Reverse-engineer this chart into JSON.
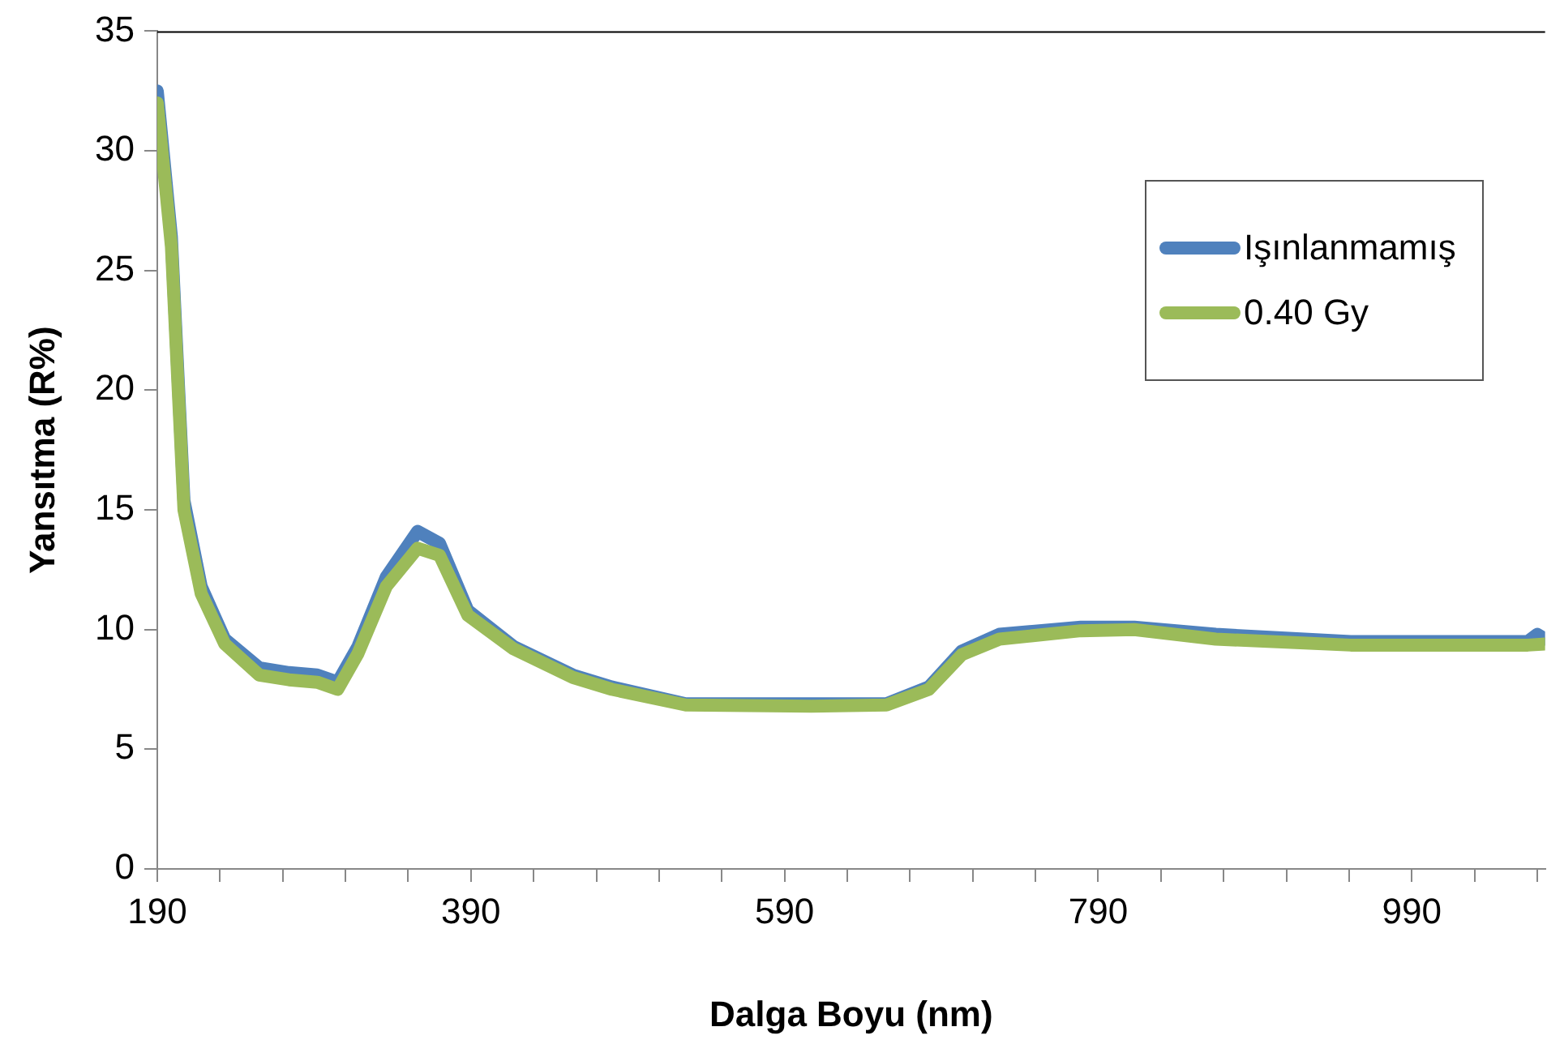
{
  "chart_data": {
    "type": "line",
    "xlabel": "Dalga Boyu (nm)",
    "ylabel": "Yansıtma (R%)",
    "xlim": [
      190,
      1075
    ],
    "ylim": [
      0,
      35
    ],
    "xticks": [
      190,
      {
        "value": 230,
        "label": null
      },
      {
        "value": 270,
        "label": null
      },
      {
        "value": 310,
        "label": null
      },
      {
        "value": 350,
        "label": null
      },
      390,
      {
        "value": 430,
        "label": null
      },
      {
        "value": 470,
        "label": null
      },
      {
        "value": 510,
        "label": null
      },
      {
        "value": 550,
        "label": null
      },
      590,
      {
        "value": 630,
        "label": null
      },
      {
        "value": 670,
        "label": null
      },
      {
        "value": 710,
        "label": null
      },
      {
        "value": 750,
        "label": null
      },
      790,
      {
        "value": 830,
        "label": null
      },
      {
        "value": 870,
        "label": null
      },
      {
        "value": 910,
        "label": null
      },
      {
        "value": 950,
        "label": null
      },
      990,
      {
        "value": 1030,
        "label": null
      },
      {
        "value": 1070,
        "label": null
      }
    ],
    "yticks": [
      0,
      5,
      10,
      15,
      20,
      25,
      30,
      35
    ],
    "grid": false,
    "legend": "top right",
    "marker": "none",
    "line_style": "solid",
    "series": [
      {
        "name": "Işınlanmamış",
        "color": "#4f81bd",
        "x": [
          190,
          199,
          207,
          218,
          233,
          255,
          274,
          292,
          305,
          318,
          336,
          356,
          370,
          388,
          417,
          455,
          480,
          527,
          607,
          655,
          682,
          703,
          727,
          779,
          813,
          865,
          951,
          1023,
          1064,
          1070,
          1075
        ],
        "values": [
          32.5,
          26.4,
          15.4,
          11.8,
          9.6,
          8.4,
          8.2,
          8.1,
          7.8,
          9.3,
          12.2,
          14.1,
          13.6,
          10.8,
          9.3,
          8.1,
          7.6,
          6.9,
          6.9,
          6.9,
          7.6,
          9.1,
          9.8,
          10.1,
          10.1,
          9.8,
          9.5,
          9.5,
          9.5,
          9.8,
          9.6
        ]
      },
      {
        "name": "0.40 Gy",
        "color": "#9bbb59",
        "x": [
          190,
          199,
          207,
          218,
          233,
          255,
          274,
          292,
          305,
          318,
          336,
          356,
          370,
          388,
          417,
          455,
          480,
          527,
          607,
          655,
          682,
          703,
          727,
          779,
          813,
          865,
          951,
          1023,
          1064,
          1075
        ],
        "values": [
          32.0,
          26.0,
          15.0,
          11.5,
          9.4,
          8.1,
          7.9,
          7.8,
          7.5,
          9.0,
          11.8,
          13.4,
          13.1,
          10.6,
          9.2,
          8.0,
          7.5,
          6.85,
          6.8,
          6.85,
          7.5,
          8.95,
          9.6,
          9.95,
          10.0,
          9.6,
          9.35,
          9.35,
          9.35,
          9.4
        ]
      }
    ]
  }
}
